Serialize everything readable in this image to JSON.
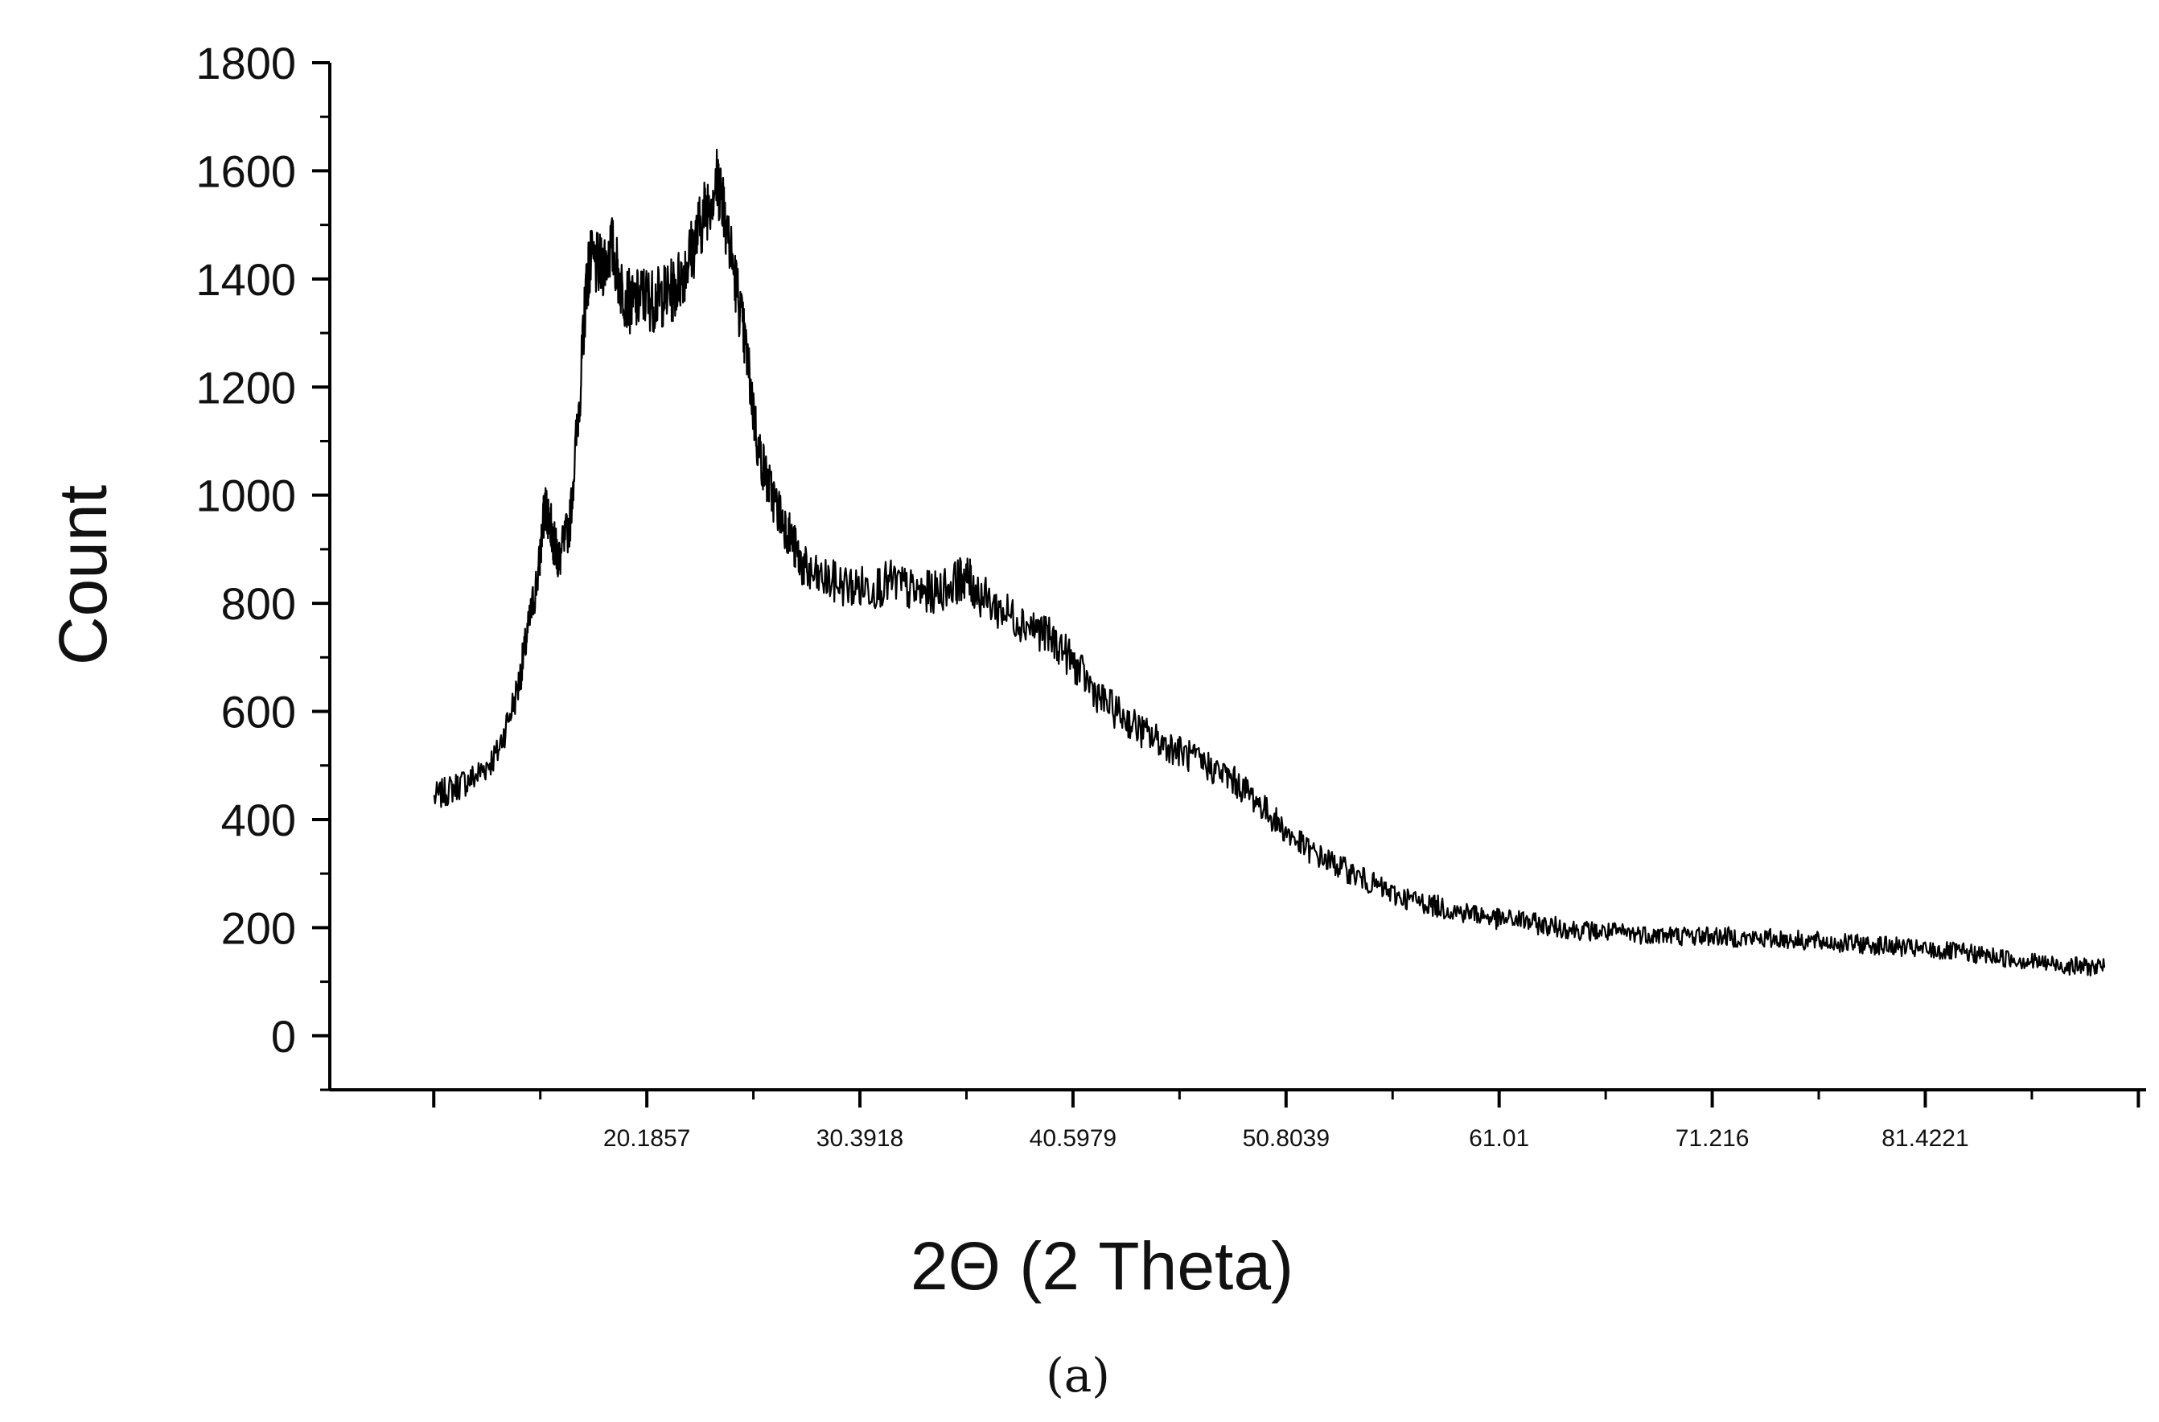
{
  "chart_data": {
    "type": "line",
    "title": "",
    "xlabel": "2Θ (2 Theta)",
    "ylabel": "Count",
    "panel_label": "(a)",
    "x_tick_labels": [
      "20.1857",
      "30.3918",
      "40.5979",
      "50.8039",
      "61.01",
      "71.216",
      "81.4221"
    ],
    "x_ticks": [
      20.1857,
      30.3918,
      40.5979,
      50.8039,
      61.01,
      71.216,
      81.4221
    ],
    "y_tick_labels": [
      "0",
      "200",
      "400",
      "600",
      "800",
      "1000",
      "1200",
      "1400",
      "1600",
      "1800"
    ],
    "y_ticks": [
      0,
      200,
      400,
      600,
      800,
      1000,
      1200,
      1400,
      1600,
      1800
    ],
    "xlim": [
      5.0,
      92.0
    ],
    "ylim": [
      -100,
      1800
    ],
    "grid": false,
    "legend": "none",
    "line_color": "#000000",
    "series": [
      {
        "x": [
          10.0,
          11.0,
          12.0,
          13.0,
          14.0,
          14.5,
          15.0,
          15.3,
          15.5,
          15.8,
          16.0,
          16.5,
          17.0,
          17.3,
          17.5,
          18.0,
          18.5,
          19.0,
          19.5,
          20.0,
          20.5,
          21.0,
          21.5,
          22.0,
          22.5,
          23.0,
          23.5,
          23.8,
          24.0,
          24.5,
          25.0,
          25.5,
          26.0,
          26.5,
          27.0,
          27.5,
          28.0,
          29.0,
          30.0,
          31.0,
          32.0,
          33.0,
          34.0,
          35.0,
          35.5,
          36.0,
          37.0,
          38.0,
          39.0,
          40.0,
          41.0,
          42.0,
          43.0,
          44.0,
          45.0,
          46.0,
          47.0,
          48.0,
          49.0,
          50.0,
          51.0,
          52.0,
          53.0,
          54.0,
          55.0,
          56.0,
          57.0,
          58.0,
          59.0,
          60.0,
          61.0,
          62.0,
          63.0,
          64.0,
          65.0,
          66.0,
          67.0,
          68.0,
          69.0,
          70.0,
          71.0,
          72.0,
          73.0,
          74.0,
          75.0,
          76.0,
          77.0,
          78.0,
          79.0,
          80.0,
          81.0,
          82.0,
          83.0,
          84.0,
          85.0,
          86.0,
          87.0,
          88.0,
          89.0,
          90.0
        ],
        "y": [
          440,
          460,
          480,
          520,
          640,
          750,
          860,
          980,
          960,
          900,
          880,
          950,
          1200,
          1400,
          1430,
          1420,
          1460,
          1380,
          1350,
          1370,
          1360,
          1370,
          1380,
          1420,
          1470,
          1530,
          1580,
          1560,
          1500,
          1380,
          1250,
          1090,
          1020,
          970,
          930,
          880,
          850,
          840,
          830,
          830,
          840,
          820,
          820,
          840,
          850,
          820,
          790,
          770,
          750,
          720,
          670,
          620,
          590,
          560,
          540,
          520,
          500,
          480,
          450,
          410,
          370,
          340,
          320,
          300,
          280,
          260,
          250,
          240,
          230,
          225,
          215,
          215,
          205,
          200,
          195,
          192,
          190,
          188,
          186,
          185,
          185,
          183,
          180,
          180,
          178,
          175,
          172,
          170,
          168,
          165,
          160,
          157,
          155,
          150,
          145,
          140,
          135,
          130,
          128,
          126
        ]
      }
    ]
  }
}
